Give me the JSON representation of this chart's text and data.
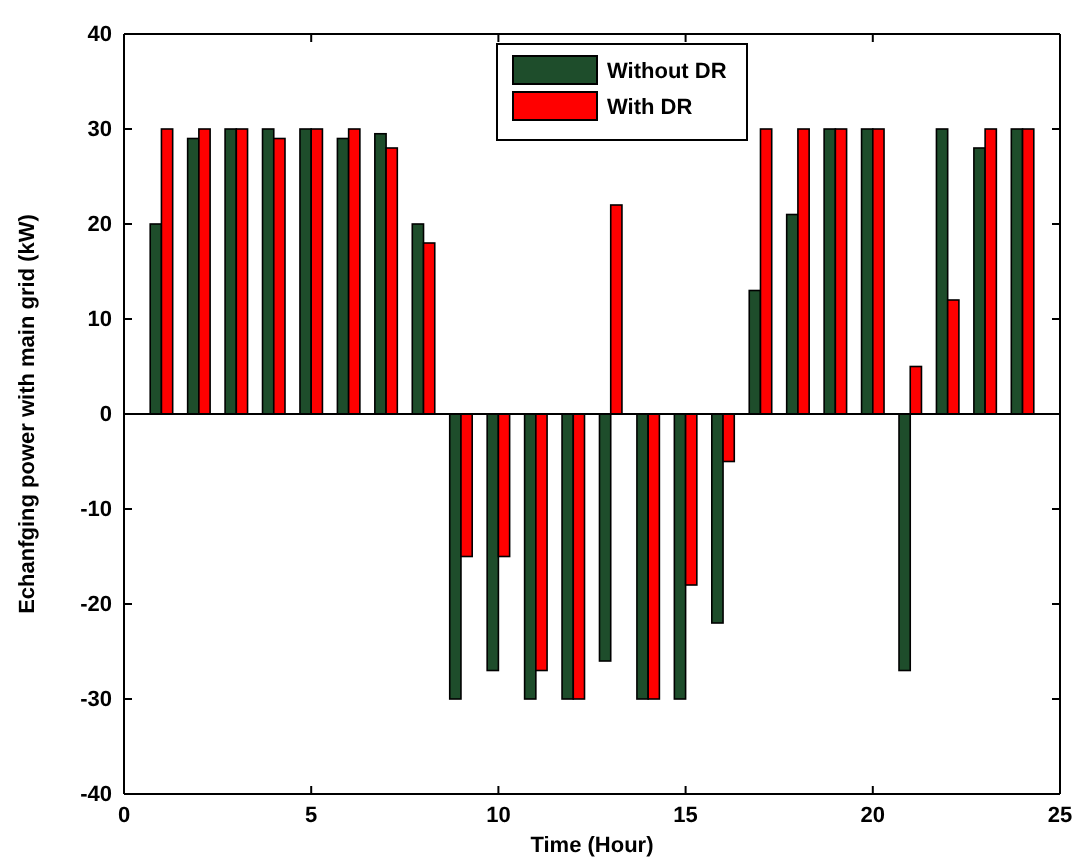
{
  "chart_data": {
    "type": "bar",
    "xlabel": "Time (Hour)",
    "ylabel": "Echanfging power with main grid (kW)",
    "x": [
      1,
      2,
      3,
      4,
      5,
      6,
      7,
      8,
      9,
      10,
      11,
      12,
      13,
      14,
      15,
      16,
      17,
      18,
      19,
      20,
      21,
      22,
      23,
      24
    ],
    "series": [
      {
        "name": "Without DR",
        "color": "#1e4d2b",
        "values": [
          20,
          29,
          30,
          30,
          30,
          29,
          29.5,
          20,
          -30,
          -27,
          -30,
          -30,
          -26,
          -30,
          -30,
          -22,
          13,
          21,
          30,
          30,
          -27,
          30,
          28,
          30
        ]
      },
      {
        "name": "With DR",
        "color": "#ff0000",
        "values": [
          30,
          30,
          30,
          29,
          30,
          30,
          28,
          18,
          -15,
          -15,
          -27,
          -30,
          22,
          -30,
          -18,
          -5,
          30,
          30,
          30,
          30,
          5,
          12,
          30,
          30
        ]
      }
    ],
    "xlim": [
      0,
      25
    ],
    "xticks": [
      0,
      5,
      10,
      15,
      20,
      25
    ],
    "ylim": [
      -40,
      40
    ],
    "yticks": [
      -40,
      -30,
      -20,
      -10,
      0,
      10,
      20,
      30,
      40
    ],
    "ref_lines": [
      {
        "axis": "y",
        "value": 0,
        "color": "#000000"
      }
    ],
    "legend": "top"
  }
}
